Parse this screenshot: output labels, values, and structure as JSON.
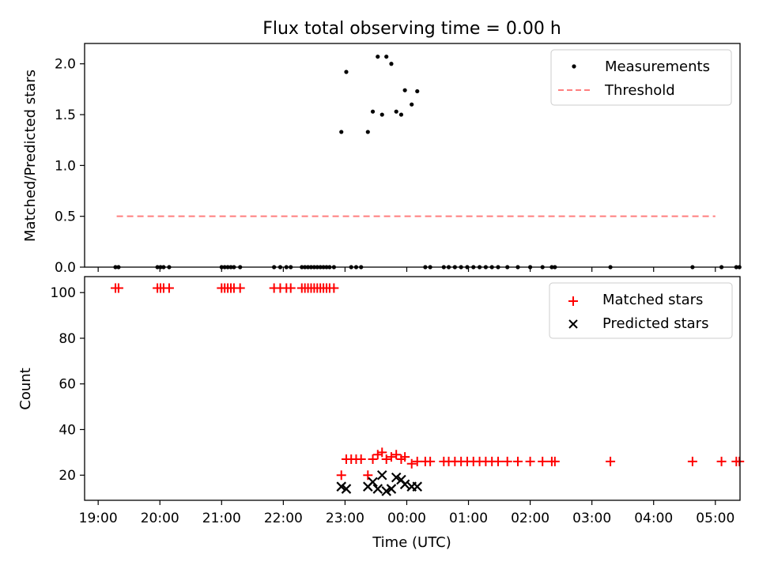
{
  "chart_data": [
    {
      "type": "scatter",
      "title": "Flux total observing time = 0.00 h",
      "xlabel": "",
      "ylabel": "Matched/Predicted stars",
      "xlim": [
        -0.22,
        10.4
      ],
      "ylim": [
        0,
        2.2
      ],
      "xticks": [
        0,
        1,
        2,
        3,
        4,
        5,
        6,
        7,
        8,
        9,
        10
      ],
      "yticks": [
        0.0,
        0.5,
        1.0,
        1.5,
        2.0
      ],
      "ytick_labels": [
        "0.0",
        "0.5",
        "1.0",
        "1.5",
        "2.0"
      ],
      "legend_position": "top-right",
      "series": [
        {
          "name": "Measurements",
          "kind": "points",
          "color": "#000000",
          "x": [
            0.28,
            0.33,
            0.96,
            1.01,
            1.06,
            1.15,
            2.0,
            2.05,
            2.1,
            2.15,
            2.2,
            2.3,
            2.85,
            2.95,
            3.05,
            3.12,
            3.3,
            3.35,
            3.4,
            3.45,
            3.5,
            3.55,
            3.6,
            3.65,
            3.7,
            3.75,
            3.82,
            3.94,
            4.02,
            4.1,
            4.18,
            4.26,
            4.37,
            4.45,
            4.53,
            4.6,
            4.67,
            4.75,
            4.83,
            4.91,
            4.97,
            5.08,
            5.17,
            5.3,
            5.38,
            5.6,
            5.68,
            5.78,
            5.88,
            5.98,
            6.08,
            6.18,
            6.28,
            6.38,
            6.48,
            6.63,
            6.8,
            7.0,
            7.2,
            7.35,
            7.4,
            8.3,
            9.63,
            10.1,
            10.34,
            10.39
          ],
          "y": [
            0,
            0,
            0,
            0,
            0,
            0,
            0,
            0,
            0,
            0,
            0,
            0,
            0,
            0,
            0,
            0,
            0,
            0,
            0,
            0,
            0,
            0,
            0,
            0,
            0,
            0,
            0,
            1.33,
            1.92,
            0,
            0,
            0,
            1.33,
            1.53,
            2.07,
            1.5,
            2.07,
            2.0,
            1.53,
            1.5,
            1.74,
            1.6,
            1.73,
            0,
            0,
            0,
            0,
            0,
            0,
            0,
            0,
            0,
            0,
            0,
            0,
            0,
            0,
            0,
            0,
            0,
            0,
            0,
            0,
            0,
            0,
            0
          ]
        },
        {
          "name": "Threshold",
          "kind": "dashed-line",
          "color": "#ff7f7f",
          "x": [
            0.3,
            10.0
          ],
          "y": [
            0.5,
            0.5
          ]
        }
      ]
    },
    {
      "type": "scatter",
      "title": "",
      "xlabel": "Time (UTC)",
      "ylabel": "Count",
      "xlim": [
        -0.22,
        10.4
      ],
      "ylim": [
        9,
        107
      ],
      "xticks": [
        0,
        1,
        2,
        3,
        4,
        5,
        6,
        7,
        8,
        9,
        10
      ],
      "xtick_labels": [
        "19:00",
        "20:00",
        "21:00",
        "22:00",
        "23:00",
        "00:00",
        "01:00",
        "02:00",
        "03:00",
        "04:00",
        "05:00"
      ],
      "yticks": [
        20,
        40,
        60,
        80,
        100
      ],
      "ytick_labels": [
        "20",
        "40",
        "60",
        "80",
        "100"
      ],
      "legend_position": "top-right",
      "series": [
        {
          "name": "Matched stars",
          "marker": "plus",
          "color": "#ff0000",
          "x": [
            0.28,
            0.33,
            0.96,
            1.01,
            1.06,
            1.15,
            2.0,
            2.05,
            2.1,
            2.15,
            2.2,
            2.3,
            2.85,
            2.95,
            3.05,
            3.12,
            3.3,
            3.35,
            3.4,
            3.45,
            3.5,
            3.55,
            3.6,
            3.65,
            3.7,
            3.75,
            3.82,
            3.94,
            4.02,
            4.1,
            4.18,
            4.26,
            4.37,
            4.45,
            4.53,
            4.6,
            4.67,
            4.75,
            4.83,
            4.91,
            4.97,
            5.08,
            5.17,
            5.3,
            5.38,
            5.6,
            5.68,
            5.78,
            5.88,
            5.98,
            6.08,
            6.18,
            6.28,
            6.38,
            6.48,
            6.63,
            6.8,
            7.0,
            7.2,
            7.35,
            7.4,
            8.3,
            9.63,
            10.1,
            10.34,
            10.39
          ],
          "y": [
            102,
            102,
            102,
            102,
            102,
            102,
            102,
            102,
            102,
            102,
            102,
            102,
            102,
            102,
            102,
            102,
            102,
            102,
            102,
            102,
            102,
            102,
            102,
            102,
            102,
            102,
            102,
            20,
            27,
            27,
            27,
            27,
            20,
            27,
            29,
            30,
            27,
            28,
            29,
            27,
            28,
            25,
            26,
            26,
            26,
            26,
            26,
            26,
            26,
            26,
            26,
            26,
            26,
            26,
            26,
            26,
            26,
            26,
            26,
            26,
            26,
            26,
            26,
            26,
            26,
            26
          ]
        },
        {
          "name": "Predicted stars",
          "marker": "x",
          "color": "#000000",
          "x": [
            3.94,
            4.02,
            4.37,
            4.45,
            4.53,
            4.6,
            4.67,
            4.75,
            4.83,
            4.91,
            4.97,
            5.08,
            5.17
          ],
          "y": [
            15,
            14,
            15,
            17,
            14,
            20,
            13,
            14,
            19,
            18,
            16,
            15,
            15
          ]
        }
      ]
    }
  ]
}
